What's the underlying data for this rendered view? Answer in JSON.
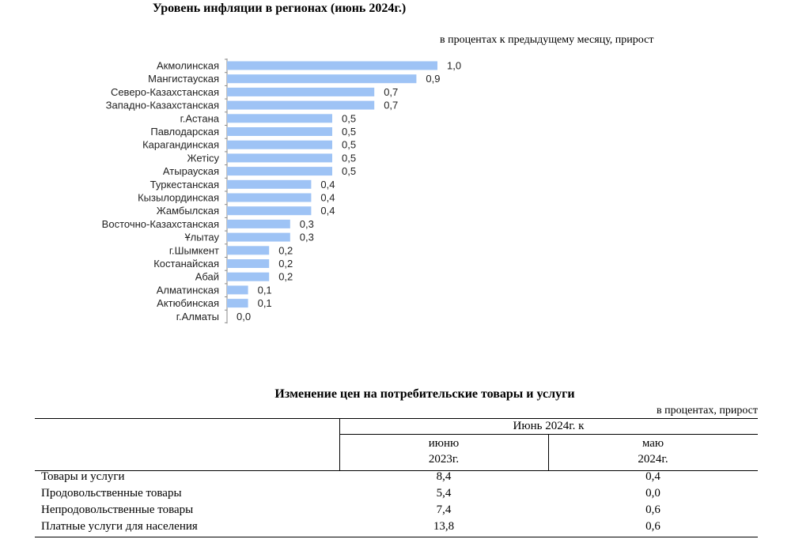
{
  "chart_data": {
    "type": "bar",
    "orientation": "horizontal",
    "title": "Уровень инфляции в регионах (июнь 2024г.)",
    "unit_note": "в процентах к предыдущему месяцу, прирост",
    "categories": [
      "Акмолинская",
      "Мангистауская",
      "Северо-Казахстанская",
      "Западно-Казахстанская",
      "г.Астана",
      "Павлодарская",
      "Карагандинская",
      "Жетісу",
      "Атырауская",
      "Туркестанская",
      "Кызылординская",
      "Жамбылская",
      "Восточно-Казахстанская",
      "Ұлытау",
      "г.Шымкент",
      "Костанайская",
      "Абай",
      "Алматинская",
      "Актюбинская",
      "г.Алматы"
    ],
    "values": [
      1.0,
      0.9,
      0.7,
      0.7,
      0.5,
      0.5,
      0.5,
      0.5,
      0.5,
      0.4,
      0.4,
      0.4,
      0.3,
      0.3,
      0.2,
      0.2,
      0.2,
      0.1,
      0.1,
      0.0
    ],
    "value_labels": [
      "1,0",
      "0,9",
      "0,7",
      "0,7",
      "0,5",
      "0,5",
      "0,5",
      "0,5",
      "0,5",
      "0,4",
      "0,4",
      "0,4",
      "0,3",
      "0,3",
      "0,2",
      "0,2",
      "0,2",
      "0,1",
      "0,1",
      "0,0"
    ],
    "xlim": [
      0,
      1.0
    ],
    "bar_color": "#9ec3f5",
    "grid": false,
    "legend": "none"
  },
  "table": {
    "title": "Изменение цен на потребительские товары и услуги",
    "unit_note": "в процентах, прирост",
    "group_header": "Июнь 2024г. к",
    "col1_line1": "июню",
    "col1_line2": "2023г.",
    "col2_line1": "маю",
    "col2_line2": "2024г.",
    "rows": [
      {
        "label": "Товары и услуги",
        "v1": "8,4",
        "v2": "0,4"
      },
      {
        "label": "Продовольственные товары",
        "v1": "5,4",
        "v2": "0,0"
      },
      {
        "label": "Непродовольственные товары",
        "v1": "7,4",
        "v2": "0,6"
      },
      {
        "label": "Платные услуги для населения",
        "v1": "13,8",
        "v2": "0,6"
      }
    ]
  }
}
